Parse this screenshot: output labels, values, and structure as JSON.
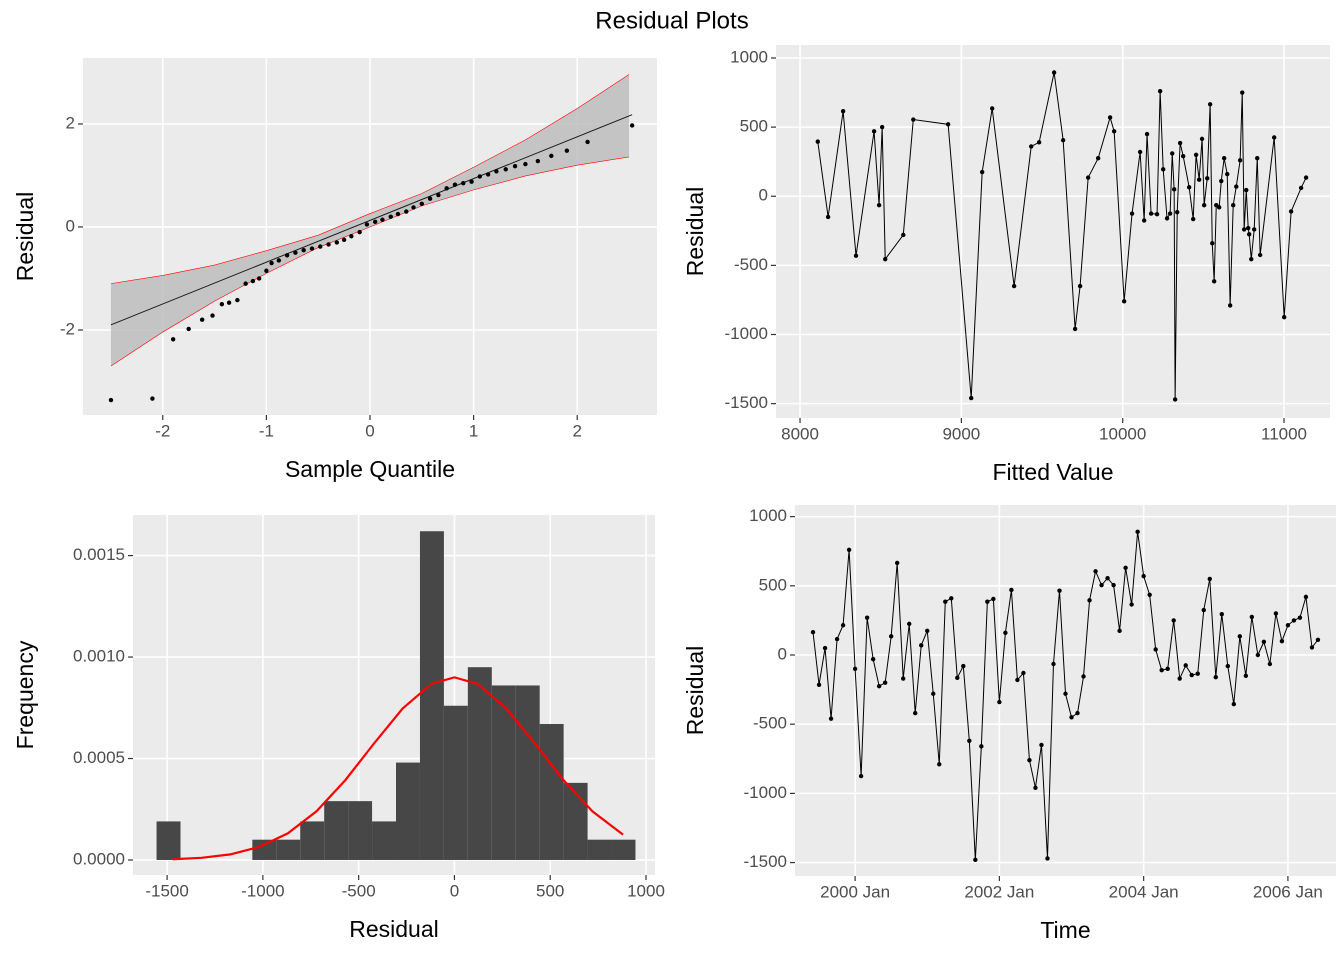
{
  "title": "Residual Plots",
  "chart_data": [
    {
      "type": "qq",
      "xlabel": "Sample Quantile",
      "ylabel": "Residual",
      "x": [
        -2.5,
        -2.1,
        -1.9,
        -1.75,
        -1.62,
        -1.52,
        -1.43,
        -1.36,
        -1.28,
        -1.2,
        -1.13,
        -1.07,
        -1.0,
        -0.95,
        -0.88,
        -0.8,
        -0.72,
        -0.64,
        -0.56,
        -0.48,
        -0.4,
        -0.32,
        -0.25,
        -0.18,
        -0.1,
        -0.03,
        0.05,
        0.12,
        0.2,
        0.27,
        0.35,
        0.42,
        0.5,
        0.58,
        0.66,
        0.74,
        0.82,
        0.9,
        0.98,
        1.06,
        1.14,
        1.22,
        1.31,
        1.4,
        1.5,
        1.62,
        1.75,
        1.9,
        2.1,
        2.53
      ],
      "values": [
        -3.36,
        -3.33,
        -2.18,
        -1.98,
        -1.8,
        -1.72,
        -1.5,
        -1.47,
        -1.42,
        -1.1,
        -1.05,
        -1.0,
        -0.85,
        -0.7,
        -0.65,
        -0.55,
        -0.5,
        -0.45,
        -0.42,
        -0.38,
        -0.34,
        -0.3,
        -0.25,
        -0.18,
        -0.1,
        0.05,
        0.1,
        0.14,
        0.2,
        0.25,
        0.3,
        0.38,
        0.45,
        0.55,
        0.62,
        0.75,
        0.82,
        0.85,
        0.88,
        0.98,
        1.02,
        1.08,
        1.12,
        1.18,
        1.22,
        1.28,
        1.38,
        1.48,
        1.65,
        1.97
      ],
      "color": "#000000",
      "reference_line": {
        "x": [
          -2.5,
          2.53
        ],
        "values": [
          -1.9,
          2.18
        ],
        "color": "#1a1a1a"
      },
      "band": {
        "x": [
          -2.5,
          -2,
          -1.5,
          -1,
          -0.5,
          0,
          0.5,
          1,
          1.5,
          2,
          2.5
        ],
        "upper": [
          -1.1,
          -0.94,
          -0.74,
          -0.46,
          -0.16,
          0.26,
          0.65,
          1.16,
          1.69,
          2.3,
          2.96
        ],
        "lower": [
          -2.7,
          -2.04,
          -1.44,
          -0.9,
          -0.4,
          0.0,
          0.41,
          0.72,
          0.99,
          1.2,
          1.36
        ],
        "color": "#ff0000",
        "fill": "#bdbdbd"
      },
      "xlim": [
        -2.77,
        2.77
      ],
      "ylim": [
        -3.65,
        3.28
      ],
      "xticks": [
        -2,
        -1,
        0,
        1,
        2
      ],
      "yticks": [
        -2,
        0,
        2
      ],
      "grid": true
    },
    {
      "type": "line",
      "xlabel": "Fitted Value",
      "ylabel": "Residual",
      "x": [
        8110,
        8174,
        8267,
        8347,
        8459,
        8490,
        8509,
        8528,
        8640,
        8702,
        8918,
        9061,
        9129,
        9191,
        9327,
        9433,
        9482,
        9575,
        9631,
        9705,
        9736,
        9786,
        9848,
        9922,
        9947,
        10009,
        10058,
        10108,
        10133,
        10151,
        10176,
        10213,
        10232,
        10251,
        10275,
        10294,
        10307,
        10319,
        10325,
        10338,
        10356,
        10375,
        10412,
        10437,
        10455,
        10474,
        10492,
        10505,
        10524,
        10542,
        10555,
        10567,
        10580,
        10598,
        10611,
        10629,
        10648,
        10666,
        10685,
        10704,
        10728,
        10741,
        10753,
        10766,
        10778,
        10784,
        10797,
        10815,
        10834,
        10852,
        10939,
        11001,
        11044,
        11106,
        11137
      ],
      "values": [
        395,
        -150,
        615,
        -430,
        470,
        -65,
        500,
        -455,
        -280,
        555,
        520,
        -1460,
        175,
        635,
        -650,
        360,
        390,
        895,
        405,
        -960,
        -650,
        135,
        275,
        570,
        470,
        -760,
        -125,
        320,
        -175,
        450,
        -125,
        -130,
        760,
        195,
        -160,
        -125,
        310,
        50,
        -1470,
        -115,
        385,
        290,
        65,
        -165,
        300,
        120,
        415,
        -65,
        130,
        665,
        -340,
        -615,
        -65,
        -80,
        110,
        275,
        160,
        -790,
        -65,
        70,
        260,
        750,
        -240,
        45,
        -230,
        -275,
        -455,
        -240,
        275,
        -425,
        425,
        -875,
        -110,
        60,
        135
      ],
      "color": "#000000",
      "xlim": [
        7851,
        11285
      ],
      "ylim": [
        -1604,
        1094
      ],
      "xticks": [
        8000,
        9000,
        10000,
        11000
      ],
      "yticks": [
        1000,
        500,
        0,
        -500,
        -1000,
        -1500
      ],
      "grid": true
    },
    {
      "type": "histogram",
      "xlabel": "Residual",
      "ylabel": "Frequency",
      "bins": [
        -1555,
        -1430,
        -1305,
        -1180,
        -1055,
        -930,
        -805,
        -680,
        -555,
        -430,
        -305,
        -180,
        -55,
        70,
        195,
        320,
        445,
        570,
        695,
        820,
        945
      ],
      "values": [
        0.00019,
        0,
        0,
        0,
        0.0001,
        0.0001,
        0.00019,
        0.00029,
        0.00029,
        0.00019,
        0.00048,
        0.00162,
        0.00076,
        0.00095,
        0.00086,
        0.00086,
        0.00067,
        0.00038,
        0.0001,
        0.0001
      ],
      "color": "#474747",
      "curve": {
        "x": [
          -1470,
          -1320,
          -1170,
          -1020,
          -870,
          -720,
          -570,
          -420,
          -270,
          -120,
          0,
          120,
          270,
          420,
          570,
          720,
          880
        ],
        "values": [
          3.7e-06,
          1.06e-05,
          2.75e-05,
          6.4e-05,
          0.000131,
          0.00024,
          0.000393,
          0.000574,
          0.000747,
          0.000868,
          0.0009,
          0.000868,
          0.000747,
          0.000574,
          0.000393,
          0.00024,
          0.000125
        ],
        "color": "#ff0000"
      },
      "xlim": [
        -1678,
        1047
      ],
      "ylim": [
        -7.4e-05,
        0.0017
      ],
      "xticks": [
        -1500,
        -1000,
        -500,
        0,
        500,
        1000
      ],
      "yticks": [
        {
          "value": 0,
          "label": "0.0000"
        },
        0.0005,
        {
          "value": 0.001,
          "label": "0.0010"
        },
        0.0015
      ],
      "grid": true
    },
    {
      "type": "line",
      "xlabel": "Time",
      "ylabel": "Residual",
      "x": [
        "1999-06",
        "1999-07",
        "1999-08",
        "1999-09",
        "1999-10",
        "1999-11",
        "1999-12",
        "2000-01",
        "2000-02",
        "2000-03",
        "2000-04",
        "2000-05",
        "2000-06",
        "2000-07",
        "2000-08",
        "2000-09",
        "2000-10",
        "2000-11",
        "2000-12",
        "2001-01",
        "2001-02",
        "2001-03",
        "2001-04",
        "2001-05",
        "2001-06",
        "2001-07",
        "2001-08",
        "2001-09",
        "2001-10",
        "2001-11",
        "2001-12",
        "2002-01",
        "2002-02",
        "2002-03",
        "2002-04",
        "2002-05",
        "2002-06",
        "2002-07",
        "2002-08",
        "2002-09",
        "2002-10",
        "2002-11",
        "2002-12",
        "2003-01",
        "2003-02",
        "2003-03",
        "2003-04",
        "2003-05",
        "2003-06",
        "2003-07",
        "2003-08",
        "2003-09",
        "2003-10",
        "2003-11",
        "2003-12",
        "2004-01",
        "2004-02",
        "2004-03",
        "2004-04",
        "2004-05",
        "2004-06",
        "2004-07",
        "2004-08",
        "2004-09",
        "2004-10",
        "2004-11",
        "2004-12",
        "2005-01",
        "2005-02",
        "2005-03",
        "2005-04",
        "2005-05",
        "2005-06",
        "2005-07",
        "2005-08",
        "2005-09",
        "2005-10",
        "2005-11",
        "2005-12",
        "2006-01",
        "2006-02",
        "2006-03",
        "2006-04",
        "2006-05",
        "2006-06"
      ],
      "values": [
        165,
        -215,
        50,
        -460,
        115,
        215,
        760,
        -100,
        -875,
        270,
        -30,
        -225,
        -200,
        135,
        665,
        -170,
        225,
        -420,
        70,
        175,
        -280,
        -790,
        385,
        410,
        -165,
        -80,
        -620,
        -1480,
        -660,
        385,
        405,
        -340,
        160,
        470,
        -180,
        -130,
        -760,
        -960,
        -650,
        -1470,
        -65,
        465,
        -280,
        -450,
        -420,
        -155,
        395,
        605,
        505,
        555,
        505,
        175,
        630,
        365,
        890,
        570,
        435,
        40,
        -110,
        -100,
        250,
        -170,
        -75,
        -145,
        -135,
        325,
        550,
        -160,
        295,
        -80,
        -355,
        135,
        -150,
        275,
        0,
        95,
        -65,
        300,
        100,
        215,
        250,
        270,
        420,
        55,
        110
      ],
      "color": "#000000",
      "xlim": [
        "1999-03",
        "2006-09"
      ],
      "ylim": [
        -1597,
        1084
      ],
      "xticks": [
        {
          "value": "2000-01",
          "label": "2000 Jan"
        },
        {
          "value": "2002-01",
          "label": "2002 Jan"
        },
        {
          "value": "2004-01",
          "label": "2004 Jan"
        },
        {
          "value": "2006-01",
          "label": "2006 Jan"
        }
      ],
      "yticks": [
        1000,
        500,
        0,
        -500,
        -1000,
        -1500
      ],
      "grid": true
    }
  ]
}
